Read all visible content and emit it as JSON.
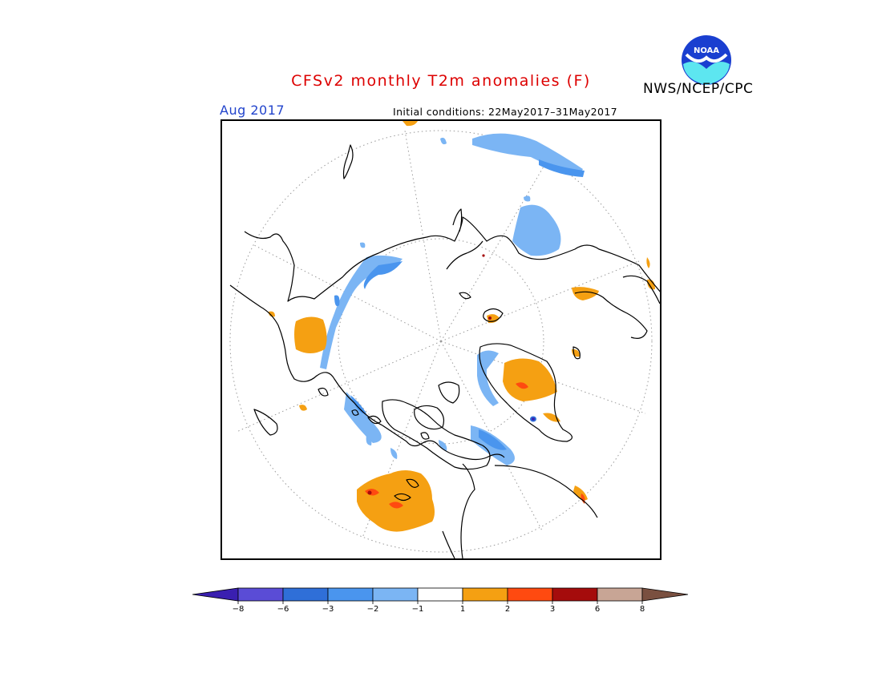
{
  "header": {
    "title": "CFSv2 monthly T2m anomalies (F)",
    "org": "NWS/NCEP/CPC",
    "logo_text": "NOAA",
    "month": "Aug 2017",
    "initial_conditions": "Initial conditions: 22May2017–31May2017"
  },
  "colors": {
    "title": "#dd0000",
    "month": "#2244cc"
  },
  "legend": {
    "ticks": [
      "−8",
      "−6",
      "−3",
      "−2",
      "−1",
      "1",
      "2",
      "3",
      "6",
      "8"
    ],
    "colors": [
      "#3a1fb0",
      "#5a4cd6",
      "#2f6fd8",
      "#4a95ee",
      "#7bb5f4",
      "#ffffff",
      "#f5a012",
      "#ff4a10",
      "#a50c0c",
      "#c8a595",
      "#7a5040"
    ]
  }
}
